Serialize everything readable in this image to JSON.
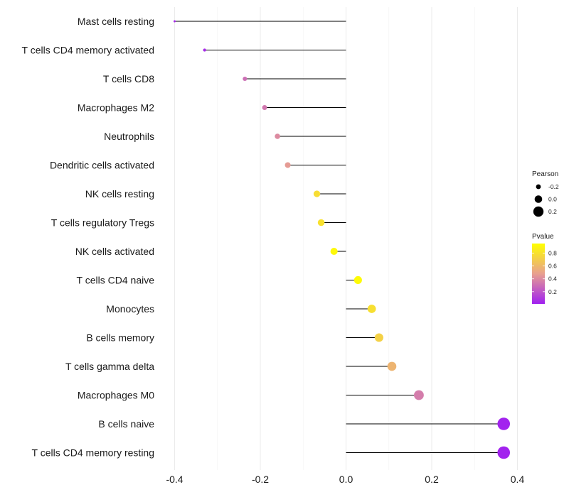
{
  "chart_data": {
    "type": "lollipop",
    "orientation": "horizontal",
    "title": "",
    "xlabel": "",
    "ylabel": "",
    "xlim": [
      -0.4,
      0.4
    ],
    "x_ticks": [
      -0.4,
      -0.2,
      0.0,
      0.2,
      0.4
    ],
    "x_tick_labels": [
      "-0.4",
      "-0.2",
      "0.0",
      "0.2",
      "0.4"
    ],
    "grid": "vertical major and minor lines",
    "categories": [
      "Mast cells resting",
      "T cells CD4 memory activated",
      "T cells CD8",
      "Macrophages M2",
      "Neutrophils",
      "Dendritic cells activated",
      "NK cells resting",
      "T cells regulatory  Tregs",
      "NK cells activated",
      "T cells CD4 naive",
      "Monocytes",
      "B cells memory",
      "T cells gamma delta",
      "Macrophages M0",
      "B cells naive",
      "T cells CD4 memory resting"
    ],
    "values": [
      -0.4,
      -0.33,
      -0.236,
      -0.19,
      -0.16,
      -0.136,
      -0.068,
      -0.058,
      -0.028,
      0.028,
      0.06,
      0.077,
      0.107,
      0.17,
      0.368,
      0.368
    ],
    "pvalues": [
      0.04,
      0.05,
      0.3,
      0.33,
      0.4,
      0.46,
      0.78,
      0.8,
      0.92,
      0.93,
      0.79,
      0.72,
      0.58,
      0.35,
      0.02,
      0.02
    ],
    "size_encoding": "Pearson",
    "color_encoding": "Pvalue",
    "legend": {
      "position": "right",
      "size": {
        "title": "Pearson",
        "entries": [
          {
            "label": "-0.2",
            "value": -0.2
          },
          {
            "label": "0.0",
            "value": 0.0
          },
          {
            "label": "0.2",
            "value": 0.2
          }
        ]
      },
      "color": {
        "title": "Pvalue",
        "ticks": [
          0.8,
          0.6,
          0.4,
          0.2
        ],
        "tick_labels": [
          "0.8",
          "0.6",
          "0.4",
          "0.2"
        ],
        "range": [
          0.01,
          0.95
        ],
        "low_color": "#a020f0",
        "mid_color": "#e8a090",
        "high_color": "#ffff00"
      }
    }
  }
}
